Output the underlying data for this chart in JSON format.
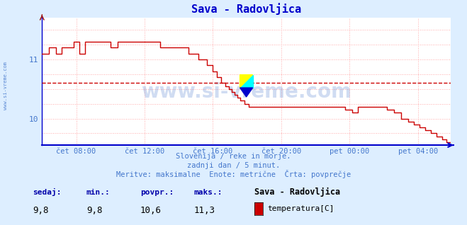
{
  "title": "Sava - Radovljica",
  "bg_color": "#ddeeff",
  "plot_bg_color": "#ffffff",
  "line_color": "#cc0000",
  "grid_color": "#ffaaaa",
  "axis_color": "#0000cc",
  "text_color": "#4477cc",
  "footer_text_color": "#0000aa",
  "watermark_color": "#4477cc",
  "title_color": "#0000cc",
  "avg_line_color": "#cc0000",
  "avg_line_value": 10.6,
  "ylim": [
    9.55,
    11.7
  ],
  "yticks": [
    10.0,
    11.0
  ],
  "xlabel_ticks": [
    "čet 08:00",
    "čet 12:00",
    "čet 16:00",
    "čet 20:00",
    "pet 00:00",
    "pet 04:00"
  ],
  "subtitle_lines": [
    "Slovenija / reke in morje.",
    "zadnji dan / 5 minut.",
    "Meritve: maksimalne  Enote: metrične  Črta: povprečje"
  ],
  "footer_labels": [
    "sedaj:",
    "min.:",
    "povpr.:",
    "maks.:"
  ],
  "footer_values": [
    "9,8",
    "9,8",
    "10,6",
    "11,3"
  ],
  "footer_station": "Sava - Radovljica",
  "footer_param": "temperatura[C]",
  "footer_color_box": "#cc0000",
  "watermark": "www.si-vreme.com",
  "left_label": "www.si-vreme.com",
  "n_points": 288,
  "tick_positions": [
    24,
    72,
    120,
    168,
    216,
    264
  ]
}
